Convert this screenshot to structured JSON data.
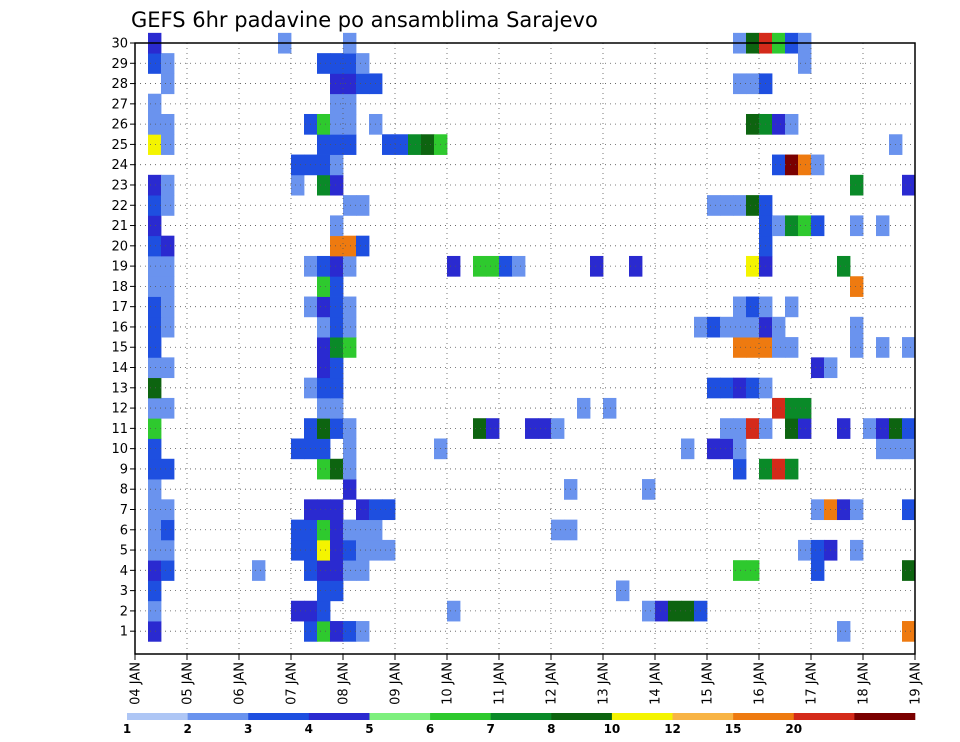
{
  "chart_data": {
    "type": "heatmap",
    "title": "GEFS 6hr padavine po ansamblima Sarajevo",
    "xlabel": "",
    "ylabel": "",
    "x_ticks": [
      "04 JAN",
      "05 JAN",
      "06 JAN",
      "07 JAN",
      "08 JAN",
      "09 JAN",
      "10 JAN",
      "11 JAN",
      "12 JAN",
      "13 JAN",
      "14 JAN",
      "15 JAN",
      "16 JAN",
      "17 JAN",
      "18 JAN",
      "19 JAN"
    ],
    "y_ticks": [
      1,
      2,
      3,
      4,
      5,
      6,
      7,
      8,
      9,
      10,
      11,
      12,
      13,
      14,
      15,
      16,
      17,
      18,
      19,
      20,
      21,
      22,
      23,
      24,
      25,
      26,
      27,
      28,
      29,
      30
    ],
    "x_range": [
      0,
      60
    ],
    "y_range": [
      0,
      30
    ],
    "x_unit": "6-hour steps from 04 JAN 00Z",
    "grid": true,
    "legend_position": "bottom",
    "levels": [
      1,
      2,
      3,
      4,
      5,
      6,
      7,
      8,
      10,
      12,
      15,
      20
    ],
    "level_colors": [
      "#aec6f5",
      "#6a93ee",
      "#1e4fe0",
      "#2a2ad0",
      "#7ef07e",
      "#2ec92e",
      "#0a8a28",
      "#0d6410",
      "#f4f400",
      "#f8b445",
      "#ee7a10",
      "#d42a1a",
      "#7a0000"
    ],
    "cells": [
      [
        1,
        1,
        3
      ],
      [
        1,
        13,
        2
      ],
      [
        1,
        14,
        5
      ],
      [
        1,
        15,
        3
      ],
      [
        1,
        16,
        2
      ],
      [
        1,
        17,
        1
      ],
      [
        1,
        59,
        10
      ],
      [
        1,
        54,
        1
      ],
      [
        2,
        1,
        1
      ],
      [
        2,
        12,
        3
      ],
      [
        2,
        13,
        3
      ],
      [
        2,
        14,
        2
      ],
      [
        2,
        24,
        1
      ],
      [
        2,
        39,
        1
      ],
      [
        2,
        40,
        3
      ],
      [
        2,
        41,
        7
      ],
      [
        2,
        42,
        7
      ],
      [
        2,
        43,
        2
      ],
      [
        3,
        1,
        2
      ],
      [
        3,
        14,
        2
      ],
      [
        3,
        15,
        2
      ],
      [
        3,
        37,
        1
      ],
      [
        4,
        1,
        3
      ],
      [
        4,
        2,
        2
      ],
      [
        4,
        9,
        1
      ],
      [
        4,
        13,
        2
      ],
      [
        4,
        14,
        3
      ],
      [
        4,
        15,
        3
      ],
      [
        4,
        16,
        1
      ],
      [
        4,
        17,
        1
      ],
      [
        4,
        46,
        5
      ],
      [
        4,
        47,
        5
      ],
      [
        4,
        52,
        2
      ],
      [
        4,
        59,
        7
      ],
      [
        5,
        1,
        1
      ],
      [
        5,
        2,
        1
      ],
      [
        5,
        12,
        2
      ],
      [
        5,
        13,
        2
      ],
      [
        5,
        14,
        8
      ],
      [
        5,
        15,
        3
      ],
      [
        5,
        16,
        2
      ],
      [
        5,
        17,
        1
      ],
      [
        5,
        18,
        1
      ],
      [
        5,
        19,
        1
      ],
      [
        5,
        51,
        1
      ],
      [
        5,
        52,
        2
      ],
      [
        5,
        53,
        3
      ],
      [
        5,
        55,
        1
      ],
      [
        6,
        1,
        1
      ],
      [
        6,
        2,
        2
      ],
      [
        6,
        12,
        2
      ],
      [
        6,
        13,
        2
      ],
      [
        6,
        14,
        5
      ],
      [
        6,
        15,
        3
      ],
      [
        6,
        16,
        1
      ],
      [
        6,
        17,
        1
      ],
      [
        6,
        18,
        1
      ],
      [
        6,
        32,
        1
      ],
      [
        6,
        33,
        1
      ],
      [
        7,
        1,
        1
      ],
      [
        7,
        2,
        1
      ],
      [
        7,
        13,
        3
      ],
      [
        7,
        14,
        3
      ],
      [
        7,
        15,
        3
      ],
      [
        7,
        17,
        3
      ],
      [
        7,
        18,
        2
      ],
      [
        7,
        19,
        2
      ],
      [
        7,
        52,
        1
      ],
      [
        7,
        53,
        10
      ],
      [
        7,
        54,
        3
      ],
      [
        7,
        55,
        1
      ],
      [
        7,
        59,
        2
      ],
      [
        8,
        1,
        1
      ],
      [
        8,
        16,
        3
      ],
      [
        8,
        33,
        1
      ],
      [
        8,
        39,
        1
      ],
      [
        9,
        1,
        2
      ],
      [
        9,
        2,
        2
      ],
      [
        9,
        14,
        5
      ],
      [
        9,
        15,
        7
      ],
      [
        9,
        16,
        1
      ],
      [
        9,
        46,
        2
      ],
      [
        9,
        48,
        6
      ],
      [
        9,
        49,
        11
      ],
      [
        9,
        50,
        6
      ],
      [
        10,
        1,
        2
      ],
      [
        10,
        12,
        2
      ],
      [
        10,
        13,
        2
      ],
      [
        10,
        14,
        2
      ],
      [
        10,
        16,
        1
      ],
      [
        10,
        23,
        1
      ],
      [
        10,
        42,
        1
      ],
      [
        10,
        44,
        3
      ],
      [
        10,
        45,
        3
      ],
      [
        10,
        46,
        1
      ],
      [
        10,
        57,
        1
      ],
      [
        10,
        58,
        1
      ],
      [
        10,
        59,
        1
      ],
      [
        11,
        1,
        5
      ],
      [
        11,
        13,
        2
      ],
      [
        11,
        14,
        7
      ],
      [
        11,
        15,
        2
      ],
      [
        11,
        16,
        1
      ],
      [
        11,
        26,
        7
      ],
      [
        11,
        27,
        3
      ],
      [
        11,
        30,
        3
      ],
      [
        11,
        31,
        3
      ],
      [
        11,
        32,
        1
      ],
      [
        11,
        45,
        1
      ],
      [
        11,
        46,
        1
      ],
      [
        11,
        47,
        11
      ],
      [
        11,
        48,
        1
      ],
      [
        11,
        50,
        7
      ],
      [
        11,
        51,
        3
      ],
      [
        11,
        54,
        3
      ],
      [
        11,
        56,
        1
      ],
      [
        11,
        57,
        3
      ],
      [
        11,
        58,
        7
      ],
      [
        11,
        59,
        2
      ],
      [
        12,
        1,
        1
      ],
      [
        12,
        2,
        1
      ],
      [
        12,
        14,
        1
      ],
      [
        12,
        15,
        1
      ],
      [
        12,
        34,
        1
      ],
      [
        12,
        36,
        1
      ],
      [
        12,
        49,
        11
      ],
      [
        12,
        50,
        6
      ],
      [
        12,
        51,
        6
      ],
      [
        13,
        1,
        7
      ],
      [
        13,
        13,
        1
      ],
      [
        13,
        14,
        2
      ],
      [
        13,
        15,
        2
      ],
      [
        13,
        44,
        2
      ],
      [
        13,
        45,
        2
      ],
      [
        13,
        46,
        3
      ],
      [
        13,
        47,
        2
      ],
      [
        13,
        48,
        1
      ],
      [
        14,
        1,
        1
      ],
      [
        14,
        2,
        1
      ],
      [
        14,
        14,
        3
      ],
      [
        14,
        15,
        2
      ],
      [
        14,
        52,
        3
      ],
      [
        14,
        53,
        1
      ],
      [
        15,
        1,
        2
      ],
      [
        15,
        14,
        3
      ],
      [
        15,
        15,
        6
      ],
      [
        15,
        16,
        5
      ],
      [
        15,
        46,
        10
      ],
      [
        15,
        47,
        10
      ],
      [
        15,
        48,
        10
      ],
      [
        15,
        49,
        1
      ],
      [
        15,
        50,
        1
      ],
      [
        15,
        55,
        1
      ],
      [
        15,
        57,
        1
      ],
      [
        15,
        59,
        1
      ],
      [
        16,
        1,
        2
      ],
      [
        16,
        2,
        1
      ],
      [
        16,
        14,
        1
      ],
      [
        16,
        15,
        2
      ],
      [
        16,
        16,
        1
      ],
      [
        16,
        43,
        1
      ],
      [
        16,
        44,
        2
      ],
      [
        16,
        45,
        1
      ],
      [
        16,
        46,
        1
      ],
      [
        16,
        47,
        1
      ],
      [
        16,
        48,
        3
      ],
      [
        16,
        49,
        1
      ],
      [
        16,
        55,
        1
      ],
      [
        17,
        1,
        2
      ],
      [
        17,
        2,
        1
      ],
      [
        17,
        13,
        1
      ],
      [
        17,
        14,
        3
      ],
      [
        17,
        15,
        2
      ],
      [
        17,
        16,
        1
      ],
      [
        17,
        46,
        1
      ],
      [
        17,
        47,
        2
      ],
      [
        17,
        48,
        1
      ],
      [
        17,
        50,
        1
      ],
      [
        18,
        1,
        1
      ],
      [
        18,
        2,
        1
      ],
      [
        18,
        14,
        5
      ],
      [
        18,
        15,
        2
      ],
      [
        18,
        55,
        10
      ],
      [
        19,
        1,
        1
      ],
      [
        19,
        2,
        1
      ],
      [
        19,
        13,
        1
      ],
      [
        19,
        14,
        2
      ],
      [
        19,
        15,
        3
      ],
      [
        19,
        16,
        1
      ],
      [
        19,
        24,
        3
      ],
      [
        19,
        26,
        5
      ],
      [
        19,
        27,
        5
      ],
      [
        19,
        28,
        2
      ],
      [
        19,
        29,
        1
      ],
      [
        19,
        35,
        3
      ],
      [
        19,
        38,
        3
      ],
      [
        19,
        47,
        8
      ],
      [
        19,
        48,
        3
      ],
      [
        19,
        54,
        6
      ],
      [
        20,
        1,
        2
      ],
      [
        20,
        2,
        3
      ],
      [
        20,
        15,
        10
      ],
      [
        20,
        16,
        10
      ],
      [
        20,
        17,
        2
      ],
      [
        20,
        48,
        2
      ],
      [
        21,
        1,
        3
      ],
      [
        21,
        15,
        1
      ],
      [
        21,
        48,
        2
      ],
      [
        21,
        49,
        1
      ],
      [
        21,
        50,
        6
      ],
      [
        21,
        51,
        5
      ],
      [
        21,
        52,
        2
      ],
      [
        21,
        55,
        1
      ],
      [
        21,
        57,
        1
      ],
      [
        22,
        1,
        2
      ],
      [
        22,
        2,
        1
      ],
      [
        22,
        16,
        1
      ],
      [
        22,
        17,
        1
      ],
      [
        22,
        44,
        1
      ],
      [
        22,
        45,
        1
      ],
      [
        22,
        46,
        1
      ],
      [
        22,
        47,
        7
      ],
      [
        22,
        48,
        2
      ],
      [
        23,
        1,
        3
      ],
      [
        23,
        2,
        1
      ],
      [
        23,
        12,
        1
      ],
      [
        23,
        14,
        6
      ],
      [
        23,
        15,
        3
      ],
      [
        23,
        55,
        6
      ],
      [
        23,
        59,
        3
      ],
      [
        24,
        12,
        2
      ],
      [
        24,
        13,
        2
      ],
      [
        24,
        14,
        2
      ],
      [
        24,
        15,
        1
      ],
      [
        24,
        49,
        2
      ],
      [
        24,
        50,
        12
      ],
      [
        24,
        51,
        10
      ],
      [
        24,
        52,
        1
      ],
      [
        25,
        1,
        8
      ],
      [
        25,
        2,
        1
      ],
      [
        25,
        14,
        2
      ],
      [
        25,
        15,
        2
      ],
      [
        25,
        16,
        2
      ],
      [
        25,
        19,
        2
      ],
      [
        25,
        20,
        2
      ],
      [
        25,
        21,
        6
      ],
      [
        25,
        22,
        7
      ],
      [
        25,
        23,
        5
      ],
      [
        25,
        58,
        1
      ],
      [
        26,
        1,
        1
      ],
      [
        26,
        2,
        1
      ],
      [
        26,
        13,
        2
      ],
      [
        26,
        14,
        5
      ],
      [
        26,
        15,
        1
      ],
      [
        26,
        16,
        1
      ],
      [
        26,
        18,
        1
      ],
      [
        26,
        47,
        7
      ],
      [
        26,
        48,
        6
      ],
      [
        26,
        49,
        3
      ],
      [
        26,
        50,
        1
      ],
      [
        27,
        1,
        1
      ],
      [
        27,
        15,
        1
      ],
      [
        27,
        16,
        1
      ],
      [
        28,
        2,
        1
      ],
      [
        28,
        15,
        3
      ],
      [
        28,
        16,
        3
      ],
      [
        28,
        17,
        2
      ],
      [
        28,
        18,
        2
      ],
      [
        28,
        46,
        1
      ],
      [
        28,
        47,
        1
      ],
      [
        28,
        48,
        2
      ],
      [
        29,
        1,
        2
      ],
      [
        29,
        2,
        1
      ],
      [
        29,
        14,
        2
      ],
      [
        29,
        15,
        2
      ],
      [
        29,
        16,
        2
      ],
      [
        29,
        17,
        1
      ],
      [
        29,
        51,
        1
      ],
      [
        30,
        1,
        3
      ],
      [
        30,
        11,
        1
      ],
      [
        30,
        16,
        1
      ],
      [
        30,
        46,
        1
      ],
      [
        30,
        47,
        7
      ],
      [
        30,
        48,
        11
      ],
      [
        30,
        49,
        5
      ],
      [
        30,
        50,
        2
      ],
      [
        30,
        51,
        1
      ]
    ]
  }
}
